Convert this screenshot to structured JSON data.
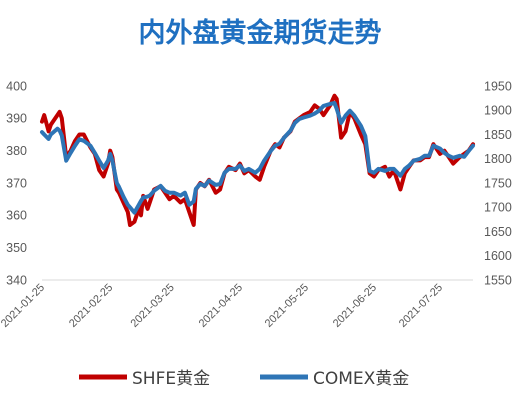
{
  "chart_data": {
    "type": "line",
    "title": "内外盘黄金期货走势",
    "title_color": "#1f70c1",
    "grid": false,
    "legend": "bottom",
    "xlim": [
      "2021-01-25",
      "2021-08-09"
    ],
    "x_ticks": [
      "2021-01-25",
      "2021-02-25",
      "2021-03-25",
      "2021-04-25",
      "2021-05-25",
      "2021-06-25",
      "2021-07-25"
    ],
    "y_left": {
      "ylim": [
        340,
        400
      ],
      "ticks": [
        340,
        350,
        360,
        370,
        380,
        390,
        400
      ]
    },
    "y_right": {
      "ylim": [
        1550,
        1950
      ],
      "ticks": [
        1550,
        1600,
        1650,
        1700,
        1750,
        1800,
        1850,
        1900,
        1950
      ]
    },
    "x": [
      "2021-01-25",
      "2021-01-26",
      "2021-01-28",
      "2021-01-29",
      "2021-02-01",
      "2021-02-02",
      "2021-02-03",
      "2021-02-05",
      "2021-02-07",
      "2021-02-09",
      "2021-02-11",
      "2021-02-13",
      "2021-02-16",
      "2021-02-18",
      "2021-02-20",
      "2021-02-22",
      "2021-02-24",
      "2021-02-25",
      "2021-02-26",
      "2021-02-28",
      "2021-03-01",
      "2021-03-03",
      "2021-03-05",
      "2021-03-06",
      "2021-03-08",
      "2021-03-10",
      "2021-03-11",
      "2021-03-12",
      "2021-03-14",
      "2021-03-15",
      "2021-03-17",
      "2021-03-20",
      "2021-03-22",
      "2021-03-24",
      "2021-03-26",
      "2021-03-29",
      "2021-03-31",
      "2021-04-02",
      "2021-04-04",
      "2021-04-05",
      "2021-04-07",
      "2021-04-09",
      "2021-04-11",
      "2021-04-14",
      "2021-04-16",
      "2021-04-18",
      "2021-04-20",
      "2021-04-23",
      "2021-04-25",
      "2021-04-27",
      "2021-04-29",
      "2021-05-02",
      "2021-05-04",
      "2021-05-06",
      "2021-05-09",
      "2021-05-11",
      "2021-05-13",
      "2021-05-15",
      "2021-05-18",
      "2021-05-20",
      "2021-05-22",
      "2021-05-24",
      "2021-05-27",
      "2021-05-29",
      "2021-05-31",
      "2021-06-02",
      "2021-06-05",
      "2021-06-07",
      "2021-06-08",
      "2021-06-10",
      "2021-06-12",
      "2021-06-14",
      "2021-06-16",
      "2021-06-19",
      "2021-06-21",
      "2021-06-23",
      "2021-06-25",
      "2021-06-27",
      "2021-06-30",
      "2021-07-02",
      "2021-07-04",
      "2021-07-07",
      "2021-07-09",
      "2021-07-11",
      "2021-07-13",
      "2021-07-16",
      "2021-07-18",
      "2021-07-20",
      "2021-07-22",
      "2021-07-25",
      "2021-07-27",
      "2021-07-29",
      "2021-07-31",
      "2021-08-03",
      "2021-08-05",
      "2021-08-07",
      "2021-08-09"
    ],
    "series": [
      {
        "name": "SHFE黄金",
        "axis": "left",
        "color": "#c00000",
        "values": [
          389,
          391,
          386,
          388,
          391,
          392,
          390,
          378,
          380,
          383,
          385,
          385,
          381,
          379,
          374,
          372,
          376,
          380,
          378,
          368,
          367,
          364,
          361,
          357,
          358,
          362,
          360,
          366,
          362,
          364,
          368,
          369,
          367,
          365,
          366,
          364,
          365,
          361,
          357,
          368,
          370,
          369,
          371,
          367,
          368,
          373,
          375,
          374,
          376,
          373,
          374,
          372,
          371,
          375,
          380,
          382,
          381,
          384,
          386,
          389,
          390,
          391,
          392,
          394,
          393,
          391,
          394,
          397,
          396,
          384,
          386,
          392,
          390,
          385,
          382,
          373,
          372,
          374,
          375,
          372,
          374,
          368,
          373,
          375,
          377,
          377,
          378,
          378,
          382,
          379,
          380,
          378,
          376,
          378,
          379,
          380,
          382
        ]
      },
      {
        "name": "COMEX黄金",
        "axis": "right",
        "color": "#2e75b6",
        "values": [
          1855,
          1850,
          1841,
          1850,
          1862,
          1858,
          1848,
          1796,
          1812,
          1827,
          1840,
          1837,
          1827,
          1812,
          1796,
          1781,
          1796,
          1810,
          1796,
          1750,
          1742,
          1722,
          1705,
          1700,
          1689,
          1705,
          1713,
          1720,
          1722,
          1724,
          1734,
          1744,
          1734,
          1730,
          1730,
          1724,
          1730,
          1705,
          1712,
          1738,
          1748,
          1744,
          1755,
          1746,
          1748,
          1771,
          1779,
          1779,
          1786,
          1775,
          1779,
          1771,
          1779,
          1796,
          1816,
          1827,
          1831,
          1843,
          1858,
          1874,
          1882,
          1885,
          1889,
          1893,
          1899,
          1909,
          1913,
          1915,
          1903,
          1874,
          1889,
          1899,
          1889,
          1868,
          1847,
          1775,
          1771,
          1779,
          1775,
          1779,
          1779,
          1765,
          1779,
          1786,
          1796,
          1800,
          1806,
          1806,
          1827,
          1821,
          1812,
          1806,
          1802,
          1806,
          1804,
          1816,
          1827
        ]
      }
    ]
  }
}
